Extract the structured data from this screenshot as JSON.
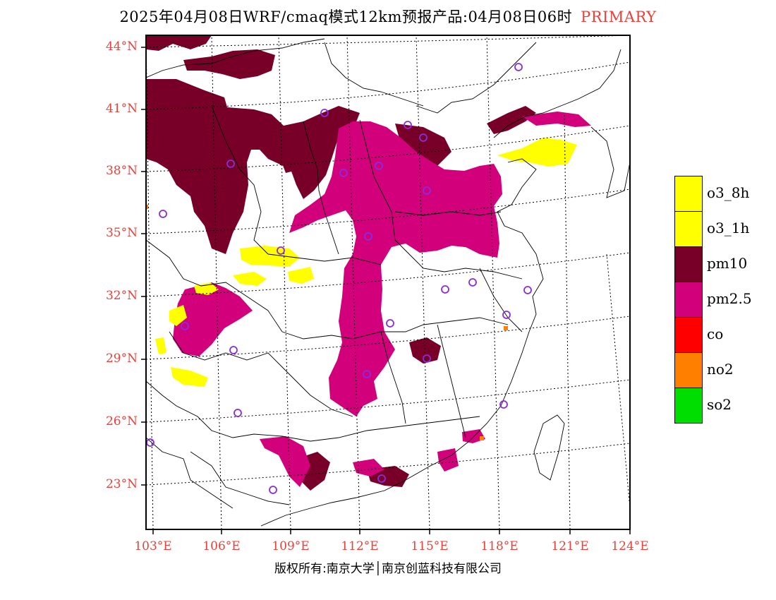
{
  "title": {
    "main": "2025年04月08日WRF/cmaq模式12km预报产品:04月08日06时",
    "tag": "PRIMARY"
  },
  "axes": {
    "lat_labels": [
      "44°N",
      "41°N",
      "38°N",
      "35°N",
      "32°N",
      "29°N",
      "26°N",
      "23°N"
    ],
    "lon_labels": [
      "103°E",
      "106°E",
      "109°E",
      "112°E",
      "115°E",
      "118°E",
      "121°E",
      "124°E"
    ]
  },
  "legend": [
    {
      "label": "o3_8h",
      "color": "#ffff00"
    },
    {
      "label": "o3_1h",
      "color": "#ffff00"
    },
    {
      "label": "pm10",
      "color": "#780028"
    },
    {
      "label": "pm2.5",
      "color": "#d2007a"
    },
    {
      "label": "co",
      "color": "#ff0000"
    },
    {
      "label": "no2",
      "color": "#ff7f00"
    },
    {
      "label": "so2",
      "color": "#00dd00"
    }
  ],
  "copyright": "版权所有:南京大学│南京创蓝科技有限公司",
  "colors": {
    "label_red": "#e8403a",
    "station_marker": "#8a2be2"
  }
}
